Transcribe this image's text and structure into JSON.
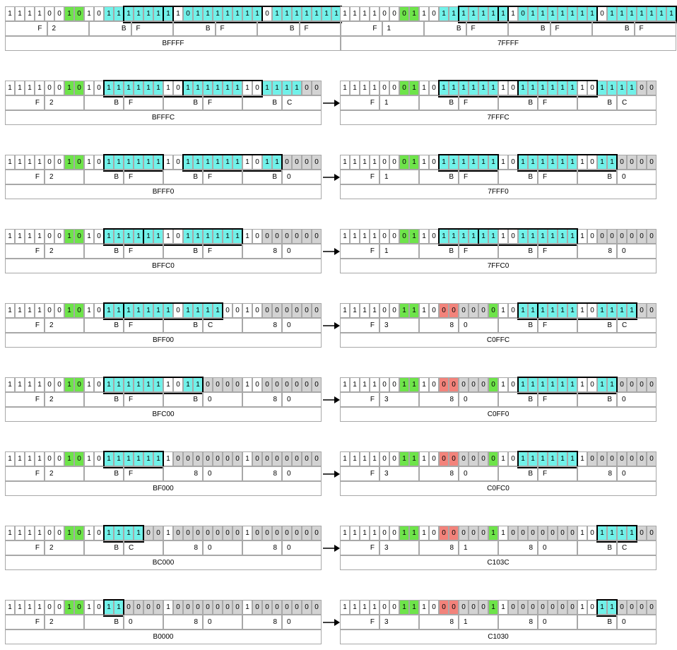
{
  "rows": [
    {
      "left": {
        "bits": "1111001010111111110111111101111111",
        "colors": "wwwwwwggwwcccccccwccccccccwccccccc",
        "boxes": [
          [
            12,
            16
          ],
          [
            16,
            25
          ],
          [
            26,
            33
          ]
        ],
        "hex": [
          "F",
          "2",
          "B",
          "F",
          "B",
          "F",
          "B",
          "F"
        ],
        "label": "BFFFF"
      },
      "right": {
        "bits": "1111000110111111110111111101111111",
        "colors": "wwwwwwggwwcccccccwccccccccwccccccc",
        "boxes": [
          [
            12,
            16
          ],
          [
            16,
            25
          ],
          [
            26,
            33
          ]
        ],
        "hex": [
          "F",
          "1",
          "B",
          "F",
          "B",
          "F",
          "B",
          "F"
        ],
        "label": "7FFFF"
      }
    },
    {
      "left": {
        "bits": "11110010101111111011111110111100",
        "colors": "wwwwwwggwwccccccwwccccccwwcccczz",
        "boxes": [
          [
            10,
            17
          ],
          [
            18,
            25
          ]
        ],
        "hex": [
          "F",
          "2",
          "B",
          "F",
          "B",
          "F",
          "B",
          "C"
        ],
        "label": "BFFFC"
      },
      "right": {
        "bits": "11110001101111111011111110111100",
        "colors": "wwwwwwggwwccccccwwccccccwwcccczz",
        "boxes": [
          [
            10,
            17
          ],
          [
            18,
            25
          ]
        ],
        "hex": [
          "F",
          "1",
          "B",
          "F",
          "B",
          "F",
          "B",
          "C"
        ],
        "label": "7FFFC"
      }
    },
    {
      "left": {
        "bits": "11110010101111111011111110110000",
        "colors": "wwwwwwggwwccccccwwccccccwwcczzzz",
        "boxes": [
          [
            10,
            15
          ],
          [
            18,
            27
          ]
        ],
        "hex": [
          "F",
          "2",
          "B",
          "F",
          "B",
          "F",
          "B",
          "0"
        ],
        "label": "BFFF0"
      },
      "right": {
        "bits": "11110001101111111011111110110000",
        "colors": "wwwwwwggwwccccccwwccccccwwcczzzz",
        "boxes": [
          [
            10,
            15
          ],
          [
            18,
            27
          ]
        ],
        "hex": [
          "F",
          "1",
          "B",
          "F",
          "B",
          "F",
          "B",
          "0"
        ],
        "label": "7FFF0"
      }
    },
    {
      "left": {
        "bits": "11110010101111111011111110000000",
        "colors": "wwwwwwggwwccccccwwccccccwwzzzzzz",
        "boxes": [
          [
            10,
            13
          ],
          [
            14,
            23
          ]
        ],
        "hex": [
          "F",
          "2",
          "B",
          "F",
          "B",
          "F",
          "8",
          "0"
        ],
        "label": "BFFC0"
      },
      "right": {
        "bits": "11110001101111111011111110000000",
        "colors": "wwwwwwggwwccccccwwccccccwwzzzzzz",
        "boxes": [
          [
            10,
            13
          ],
          [
            14,
            23
          ]
        ],
        "hex": [
          "F",
          "1",
          "B",
          "F",
          "B",
          "F",
          "8",
          "0"
        ],
        "label": "7FFC0"
      }
    },
    {
      "left": {
        "bits": "11110010101111111011110010000000",
        "colors": "wwwwwwggwwcccccccwccccwwwwzzzzzz",
        "boxes": [
          [
            10,
            11
          ],
          [
            12,
            21
          ]
        ],
        "hex": [
          "F",
          "2",
          "B",
          "F",
          "B",
          "C",
          "8",
          "0"
        ],
        "label": "BFF00"
      },
      "right": {
        "bits": "11110011100000001011111110111100",
        "colors": "wwwwwwggwwrrzzzgwwccccccwwcccczz",
        "boxes": [
          [
            18,
            19
          ],
          [
            20,
            29
          ]
        ],
        "hex": [
          "F",
          "3",
          "8",
          "0",
          "B",
          "F",
          "B",
          "C"
        ],
        "label": "C0FFC"
      }
    },
    {
      "left": {
        "bits": "11110010101111111011000010000000",
        "colors": "wwwwwwggwwccccccwwcczzzzwwzzzzzz",
        "boxes": [
          [
            10,
            19
          ]
        ],
        "hex": [
          "F",
          "2",
          "B",
          "F",
          "B",
          "0",
          "8",
          "0"
        ],
        "label": "BFC00"
      },
      "right": {
        "bits": "11110011100000001011111110110000",
        "colors": "wwwwwwggwwrrzzzgwwccccccwwcczzzz",
        "boxes": [
          [
            18,
            27
          ]
        ],
        "hex": [
          "F",
          "3",
          "8",
          "0",
          "B",
          "F",
          "B",
          "0"
        ],
        "label": "C0FF0"
      }
    },
    {
      "left": {
        "bits": "11110010101111111000000010000000",
        "colors": "wwwwwwggwwccccccwzzzzzzzwzzzzzzz",
        "boxes": [
          [
            10,
            15
          ]
        ],
        "hex": [
          "F",
          "2",
          "B",
          "F",
          "8",
          "0",
          "8",
          "0"
        ],
        "label": "BF000"
      },
      "right": {
        "bits": "11110011100000001011111110000000",
        "colors": "wwwwwwggwwrrzzzgwwccccccwzzzzzzz",
        "boxes": [
          [
            18,
            23
          ]
        ],
        "hex": [
          "F",
          "3",
          "8",
          "0",
          "B",
          "F",
          "8",
          "0"
        ],
        "label": "C0FC0"
      }
    },
    {
      "left": {
        "bits": "11110010101111001000000010000000",
        "colors": "wwwwwwggwwcccczzwzzzzzzzwzzzzzzz",
        "boxes": [
          [
            10,
            13
          ]
        ],
        "hex": [
          "F",
          "2",
          "B",
          "C",
          "8",
          "0",
          "8",
          "0"
        ],
        "label": "BC000"
      },
      "right": {
        "bits": "11110011100000011000000010111100",
        "colors": "wwwwwwggwwrrzzzgwzzzzzzzwwcccczz",
        "boxes": [
          [
            26,
            29
          ]
        ],
        "hex": [
          "F",
          "3",
          "8",
          "1",
          "8",
          "0",
          "B",
          "C"
        ],
        "label": "C103C"
      }
    },
    {
      "left": {
        "bits": "11110010101100001000000010000000",
        "colors": "wwwwwwggwwcczzzzwzzzzzzzwzzzzzzz",
        "boxes": [
          [
            10,
            11
          ]
        ],
        "hex": [
          "F",
          "2",
          "B",
          "0",
          "8",
          "0",
          "8",
          "0"
        ],
        "label": "B0000"
      },
      "right": {
        "bits": "11110011100000011000000010110000",
        "colors": "wwwwwwggwwrrzzzgwzzzzzzzwwcczzzz",
        "boxes": [
          [
            26,
            27
          ]
        ],
        "hex": [
          "F",
          "3",
          "8",
          "1",
          "8",
          "0",
          "B",
          "0"
        ],
        "label": "C1030"
      }
    }
  ]
}
